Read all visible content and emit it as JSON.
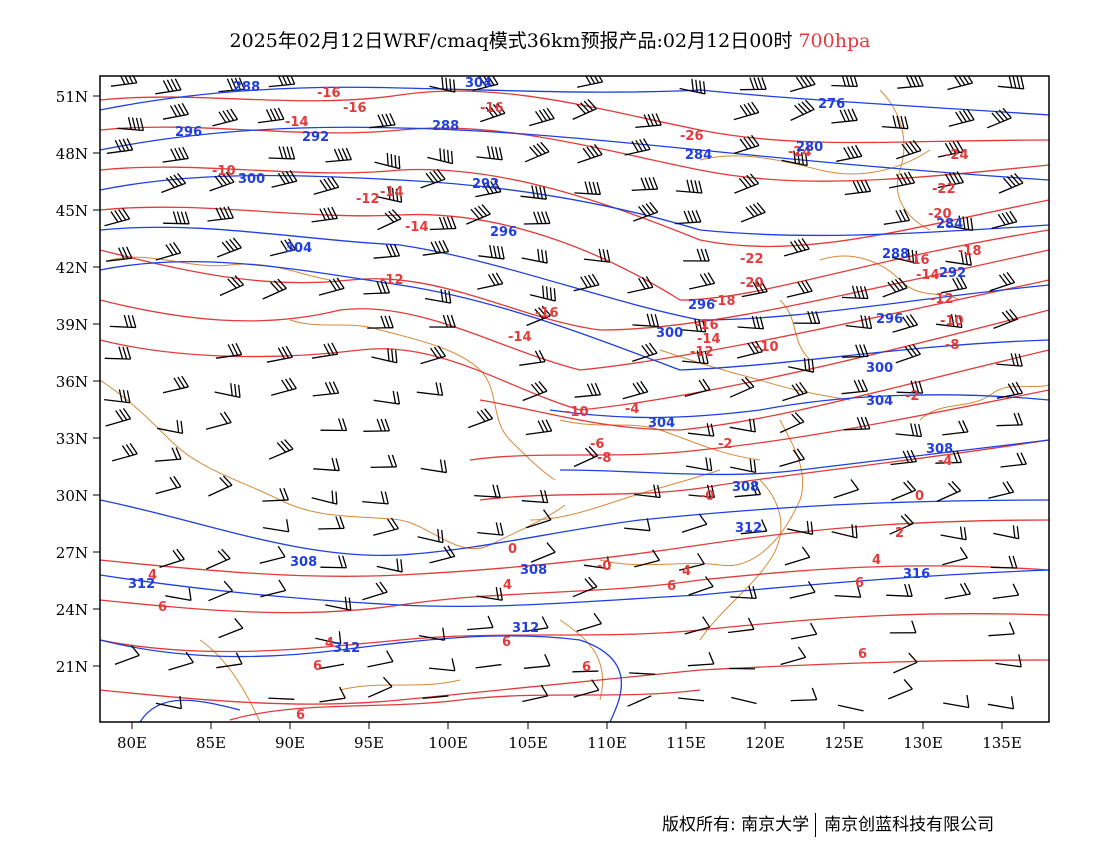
{
  "header": {
    "title": "2025年02月12日WRF/cmaq模式36km预报产品:02月12日00时",
    "level": "700hpa"
  },
  "axes": {
    "lat_labels": [
      "51N",
      "48N",
      "45N",
      "42N",
      "39N",
      "36N",
      "33N",
      "30N",
      "27N",
      "24N",
      "21N"
    ],
    "lon_labels": [
      "80E",
      "85E",
      "90E",
      "95E",
      "100E",
      "105E",
      "110E",
      "115E",
      "120E",
      "125E",
      "130E",
      "135E"
    ]
  },
  "contour_labels": {
    "temperature": [
      "-16",
      "-14",
      "-12",
      "-10",
      "-14",
      "-12",
      "-14",
      "-16",
      "-26",
      "-24",
      "-24",
      "-22",
      "-20",
      "-18",
      "-16",
      "-14",
      "-12",
      "-10",
      "-8",
      "-22",
      "-20",
      "-18",
      "-16",
      "-14",
      "-12",
      "-10",
      "-10",
      "-6",
      "-4",
      "-8",
      "-2",
      "-2",
      "-4",
      "-0",
      "0",
      "2",
      "-0",
      "2",
      "-2",
      "-2",
      "4",
      "4",
      "4",
      "4",
      "6",
      "6",
      "6",
      "6",
      "6",
      "6",
      "6"
    ],
    "geopotential": [
      "288",
      "304",
      "296",
      "292",
      "288",
      "300",
      "292",
      "296",
      "304",
      "284",
      "276",
      "280",
      "284",
      "288",
      "292",
      "296",
      "300",
      "300",
      "304",
      "304",
      "308",
      "300",
      "296",
      "312",
      "308",
      "316",
      "308",
      "312",
      "312",
      "312"
    ]
  },
  "colors": {
    "temperature": "#e33a3a",
    "geopotential": "#1f3fe0",
    "wind_barb": "#000000",
    "boundary": "#d68a3a"
  },
  "footer": {
    "copyright_left": "版权所有: 南京大学",
    "copyright_right": "南京创蓝科技有限公司"
  }
}
